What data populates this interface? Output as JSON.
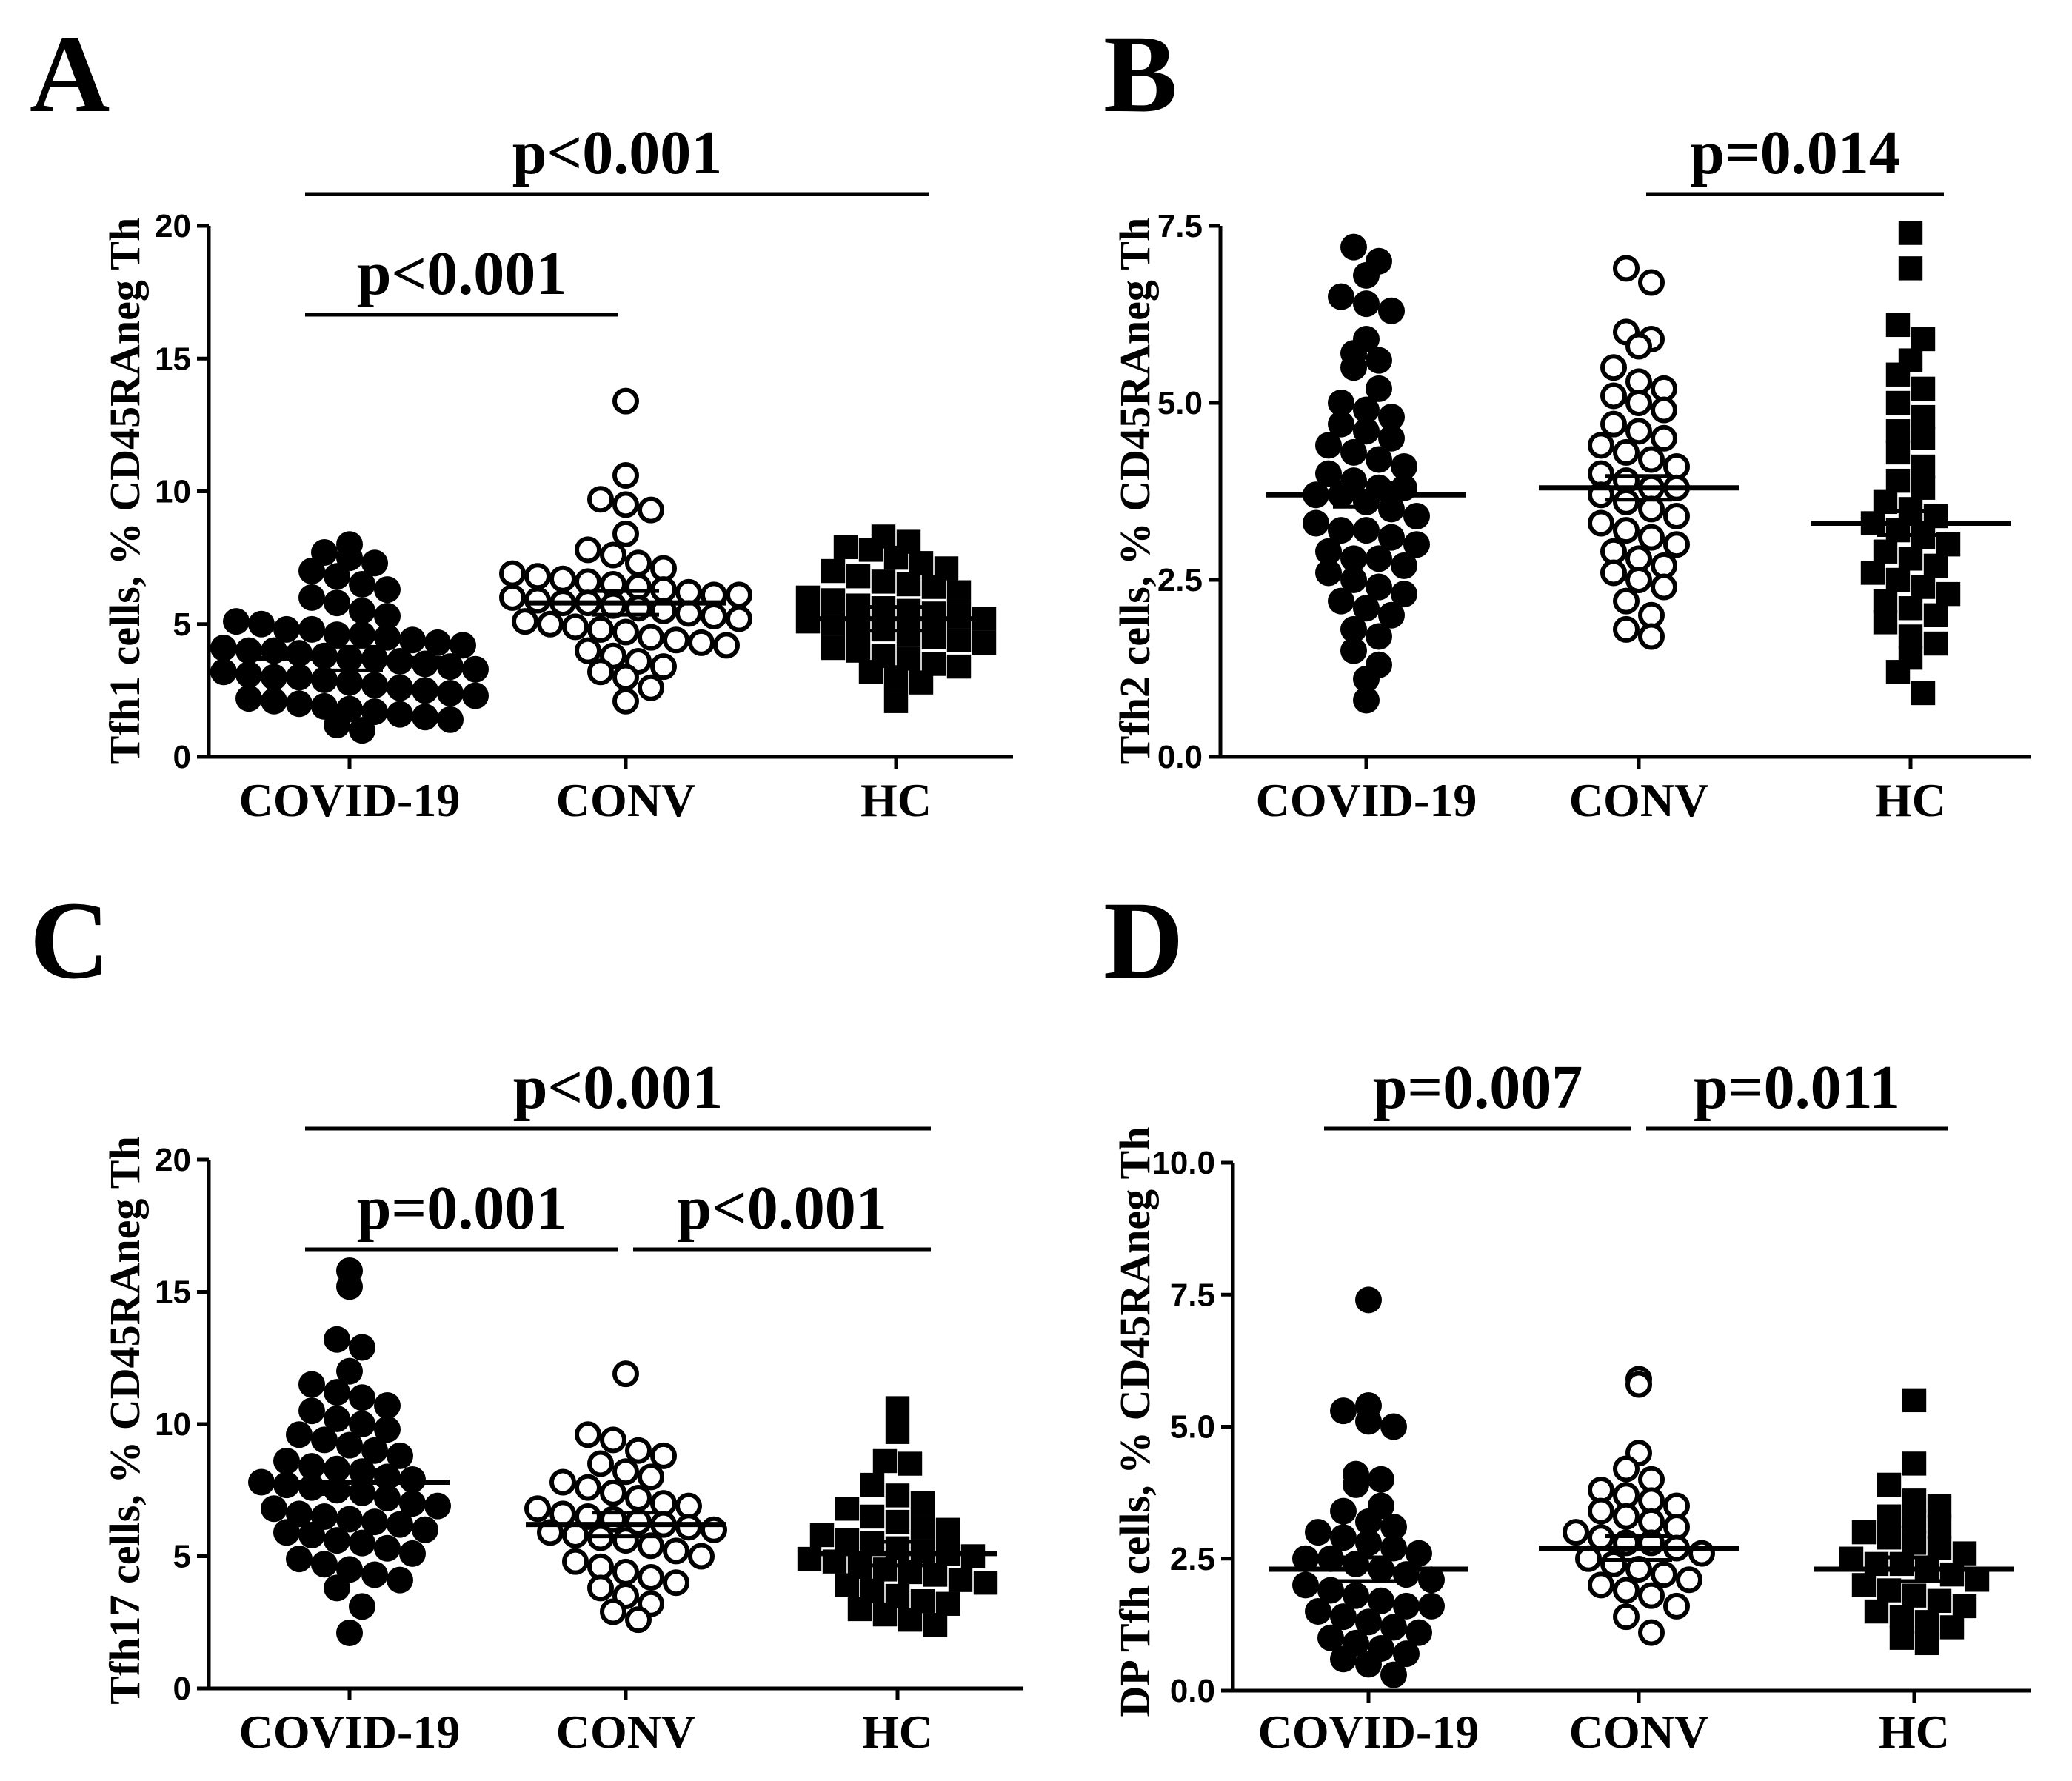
{
  "chart_data": [
    {
      "panel": "A",
      "type": "scatter",
      "ylabel": "Tfh1 cells, % CD45RAneg Th",
      "categories": [
        "COVID-19",
        "CONV",
        "HC"
      ],
      "yticks": [
        "0",
        "5",
        "10",
        "15",
        "20"
      ],
      "ylim": [
        0,
        20
      ],
      "tick_values": [
        0,
        5,
        10,
        15,
        20
      ],
      "series": [
        {
          "name": "COVID-19",
          "marker": "filled-circle",
          "mean": 3.7,
          "values": [
            8.0,
            7.7,
            7.5,
            7.3,
            7.0,
            6.8,
            6.5,
            6.3,
            6.0,
            5.8,
            5.5,
            5.3,
            5.1,
            5.0,
            4.8,
            4.8,
            4.6,
            4.6,
            4.5,
            4.4,
            4.3,
            4.2,
            4.1,
            4.0,
            4.0,
            3.9,
            3.8,
            3.7,
            3.7,
            3.6,
            3.5,
            3.4,
            3.3,
            3.2,
            3.1,
            3.0,
            3.0,
            2.9,
            2.8,
            2.7,
            2.6,
            2.5,
            2.4,
            2.3,
            2.2,
            2.1,
            2.0,
            1.9,
            1.8,
            1.7,
            1.6,
            1.5,
            1.4,
            1.2,
            1.0
          ]
        },
        {
          "name": "CONV",
          "marker": "open-circle",
          "mean": 5.8,
          "values": [
            13.4,
            10.6,
            9.7,
            9.5,
            9.3,
            8.4,
            7.8,
            7.6,
            7.3,
            7.1,
            6.9,
            6.8,
            6.7,
            6.6,
            6.5,
            6.4,
            6.3,
            6.2,
            6.1,
            6.1,
            6.0,
            5.9,
            5.8,
            5.8,
            5.7,
            5.6,
            5.5,
            5.4,
            5.3,
            5.2,
            5.1,
            5.0,
            4.9,
            4.8,
            4.7,
            4.5,
            4.4,
            4.3,
            4.2,
            4.0,
            3.8,
            3.6,
            3.4,
            3.2,
            3.0,
            2.6,
            2.1
          ]
        },
        {
          "name": "HC",
          "marker": "filled-square",
          "mean": 5.2,
          "values": [
            8.3,
            8.1,
            7.9,
            7.8,
            7.5,
            7.3,
            7.1,
            7.0,
            6.8,
            6.6,
            6.5,
            6.4,
            6.2,
            6.0,
            5.9,
            5.7,
            5.6,
            5.5,
            5.4,
            5.3,
            5.2,
            5.1,
            5.0,
            4.9,
            4.8,
            4.6,
            4.5,
            4.4,
            4.3,
            4.1,
            4.0,
            3.8,
            3.7,
            3.5,
            3.4,
            3.2,
            3.0,
            2.8,
            2.1
          ]
        }
      ],
      "comparisons": [
        {
          "label": "p<0.001",
          "from": "COVID-19",
          "to": "HC",
          "level": 2
        },
        {
          "label": "p<0.001",
          "from": "COVID-19",
          "to": "CONV",
          "level": 1
        }
      ]
    },
    {
      "panel": "B",
      "type": "scatter",
      "ylabel": "Tfh2 cells, % CD45RAneg Th",
      "categories": [
        "COVID-19",
        "CONV",
        "HC"
      ],
      "yticks": [
        "0.0",
        "2.5",
        "5.0",
        "7.5"
      ],
      "ylim": [
        0,
        7.5
      ],
      "tick_values": [
        0,
        2.5,
        5,
        7.5
      ],
      "series": [
        {
          "name": "COVID-19",
          "marker": "filled-circle",
          "mean": 3.7,
          "values": [
            7.2,
            7.0,
            6.8,
            6.5,
            6.4,
            6.3,
            5.9,
            5.7,
            5.6,
            5.5,
            5.2,
            5.0,
            4.9,
            4.8,
            4.7,
            4.6,
            4.5,
            4.4,
            4.3,
            4.2,
            4.1,
            4.0,
            3.9,
            3.8,
            3.8,
            3.7,
            3.7,
            3.6,
            3.5,
            3.4,
            3.3,
            3.2,
            3.2,
            3.1,
            3.0,
            2.9,
            2.8,
            2.8,
            2.7,
            2.6,
            2.5,
            2.4,
            2.3,
            2.2,
            2.1,
            2.0,
            1.8,
            1.7,
            1.5,
            1.3,
            1.1,
            0.8
          ]
        },
        {
          "name": "CONV",
          "marker": "open-circle",
          "mean": 3.8,
          "values": [
            6.9,
            6.7,
            6.0,
            5.9,
            5.8,
            5.5,
            5.3,
            5.2,
            5.1,
            5.0,
            4.9,
            4.7,
            4.6,
            4.5,
            4.4,
            4.3,
            4.2,
            4.1,
            4.0,
            3.9,
            3.8,
            3.8,
            3.7,
            3.6,
            3.5,
            3.4,
            3.3,
            3.2,
            3.1,
            3.0,
            2.9,
            2.8,
            2.7,
            2.6,
            2.5,
            2.4,
            2.2,
            2.0,
            1.8,
            1.7
          ]
        },
        {
          "name": "HC",
          "marker": "filled-square",
          "mean": 3.3,
          "values": [
            7.4,
            6.9,
            6.1,
            5.9,
            5.6,
            5.4,
            5.2,
            5.0,
            4.8,
            4.6,
            4.5,
            4.3,
            4.1,
            3.9,
            3.8,
            3.6,
            3.5,
            3.4,
            3.3,
            3.2,
            3.1,
            3.0,
            2.9,
            2.8,
            2.7,
            2.6,
            2.5,
            2.4,
            2.3,
            2.2,
            2.1,
            2.0,
            1.9,
            1.7,
            1.6,
            1.4,
            1.2,
            0.9
          ]
        }
      ],
      "comparisons": [
        {
          "label": "p=0.014",
          "from": "CONV",
          "to": "HC",
          "level": 2
        }
      ]
    },
    {
      "panel": "C",
      "type": "scatter",
      "ylabel": "Tfh17 cells, % CD45RAneg Th",
      "categories": [
        "COVID-19",
        "CONV",
        "HC"
      ],
      "yticks": [
        "0",
        "5",
        "10",
        "15",
        "20"
      ],
      "ylim": [
        0,
        20
      ],
      "tick_values": [
        0,
        5,
        10,
        15,
        20
      ],
      "series": [
        {
          "name": "COVID-19",
          "marker": "filled-circle",
          "mean": 7.8,
          "values": [
            15.8,
            15.2,
            13.2,
            12.9,
            12.0,
            11.5,
            11.2,
            11.0,
            10.7,
            10.5,
            10.2,
            10.0,
            9.8,
            9.6,
            9.4,
            9.2,
            9.0,
            8.8,
            8.6,
            8.4,
            8.3,
            8.2,
            8.0,
            7.9,
            7.8,
            7.7,
            7.6,
            7.5,
            7.4,
            7.2,
            7.0,
            6.9,
            6.8,
            6.6,
            6.5,
            6.4,
            6.3,
            6.2,
            6.0,
            5.9,
            5.8,
            5.6,
            5.5,
            5.3,
            5.1,
            4.9,
            4.7,
            4.5,
            4.3,
            4.1,
            3.8,
            3.1,
            2.1
          ]
        },
        {
          "name": "CONV",
          "marker": "open-circle",
          "mean": 6.2,
          "values": [
            11.9,
            9.6,
            9.4,
            9.0,
            8.8,
            8.5,
            8.2,
            8.0,
            7.8,
            7.6,
            7.4,
            7.2,
            7.0,
            6.9,
            6.8,
            6.6,
            6.5,
            6.4,
            6.3,
            6.2,
            6.1,
            6.0,
            5.9,
            5.8,
            5.7,
            5.6,
            5.4,
            5.2,
            5.0,
            4.8,
            4.6,
            4.4,
            4.2,
            4.0,
            3.8,
            3.5,
            3.2,
            2.9,
            2.6
          ]
        },
        {
          "name": "HC",
          "marker": "filled-square",
          "mean": 5.1,
          "values": [
            10.6,
            9.7,
            8.6,
            8.5,
            7.7,
            7.3,
            7.0,
            6.8,
            6.5,
            6.3,
            6.1,
            6.0,
            5.8,
            5.6,
            5.5,
            5.3,
            5.2,
            5.1,
            5.0,
            4.9,
            4.8,
            4.6,
            4.5,
            4.4,
            4.3,
            4.1,
            4.0,
            3.9,
            3.7,
            3.5,
            3.3,
            3.2,
            3.0,
            2.8,
            2.6,
            2.4
          ]
        }
      ],
      "comparisons": [
        {
          "label": "p<0.001",
          "from": "COVID-19",
          "to": "HC",
          "level": 2
        },
        {
          "label": "p=0.001",
          "from": "COVID-19",
          "to": "CONV",
          "level": 1
        },
        {
          "label": "p<0.001",
          "from": "CONV",
          "to": "HC",
          "level": 1
        }
      ]
    },
    {
      "panel": "D",
      "type": "scatter",
      "ylabel": "DP Tfh cells, % CD45RAneg Th",
      "categories": [
        "COVID-19",
        "CONV",
        "HC"
      ],
      "yticks": [
        "0.0",
        "2.5",
        "5.0",
        "7.5",
        "10.0"
      ],
      "ylim": [
        0,
        10
      ],
      "tick_values": [
        0,
        2.5,
        5,
        7.5,
        10
      ],
      "series": [
        {
          "name": "COVID-19",
          "marker": "filled-circle",
          "mean": 2.3,
          "values": [
            7.4,
            5.4,
            5.3,
            5.1,
            5.0,
            4.1,
            4.0,
            3.9,
            3.5,
            3.4,
            3.2,
            3.1,
            3.0,
            2.9,
            2.8,
            2.7,
            2.6,
            2.5,
            2.5,
            2.4,
            2.3,
            2.2,
            2.1,
            2.0,
            1.9,
            1.8,
            1.7,
            1.6,
            1.6,
            1.5,
            1.4,
            1.3,
            1.2,
            1.1,
            1.0,
            0.9,
            0.8,
            0.7,
            0.6,
            0.5,
            0.3
          ]
        },
        {
          "name": "CONV",
          "marker": "open-circle",
          "mean": 2.7,
          "values": [
            5.9,
            5.8,
            4.5,
            4.2,
            4.0,
            3.8,
            3.7,
            3.6,
            3.5,
            3.4,
            3.3,
            3.2,
            3.1,
            3.0,
            2.9,
            2.8,
            2.8,
            2.7,
            2.6,
            2.5,
            2.4,
            2.3,
            2.2,
            2.1,
            2.0,
            1.9,
            1.8,
            1.6,
            1.4,
            1.1
          ]
        },
        {
          "name": "HC",
          "marker": "filled-square",
          "mean": 2.3,
          "values": [
            5.5,
            4.3,
            3.9,
            3.6,
            3.5,
            3.3,
            3.2,
            3.1,
            3.0,
            2.9,
            2.8,
            2.7,
            2.6,
            2.5,
            2.4,
            2.4,
            2.3,
            2.2,
            2.1,
            2.0,
            1.9,
            1.8,
            1.7,
            1.6,
            1.5,
            1.4,
            1.3,
            1.2,
            1.0,
            0.9
          ]
        }
      ],
      "comparisons": [
        {
          "label": "p=0.007",
          "from": "COVID-19",
          "to": "CONV",
          "level": 2
        },
        {
          "label": "p=0.011",
          "from": "CONV",
          "to": "HC",
          "level": 2
        }
      ]
    }
  ]
}
